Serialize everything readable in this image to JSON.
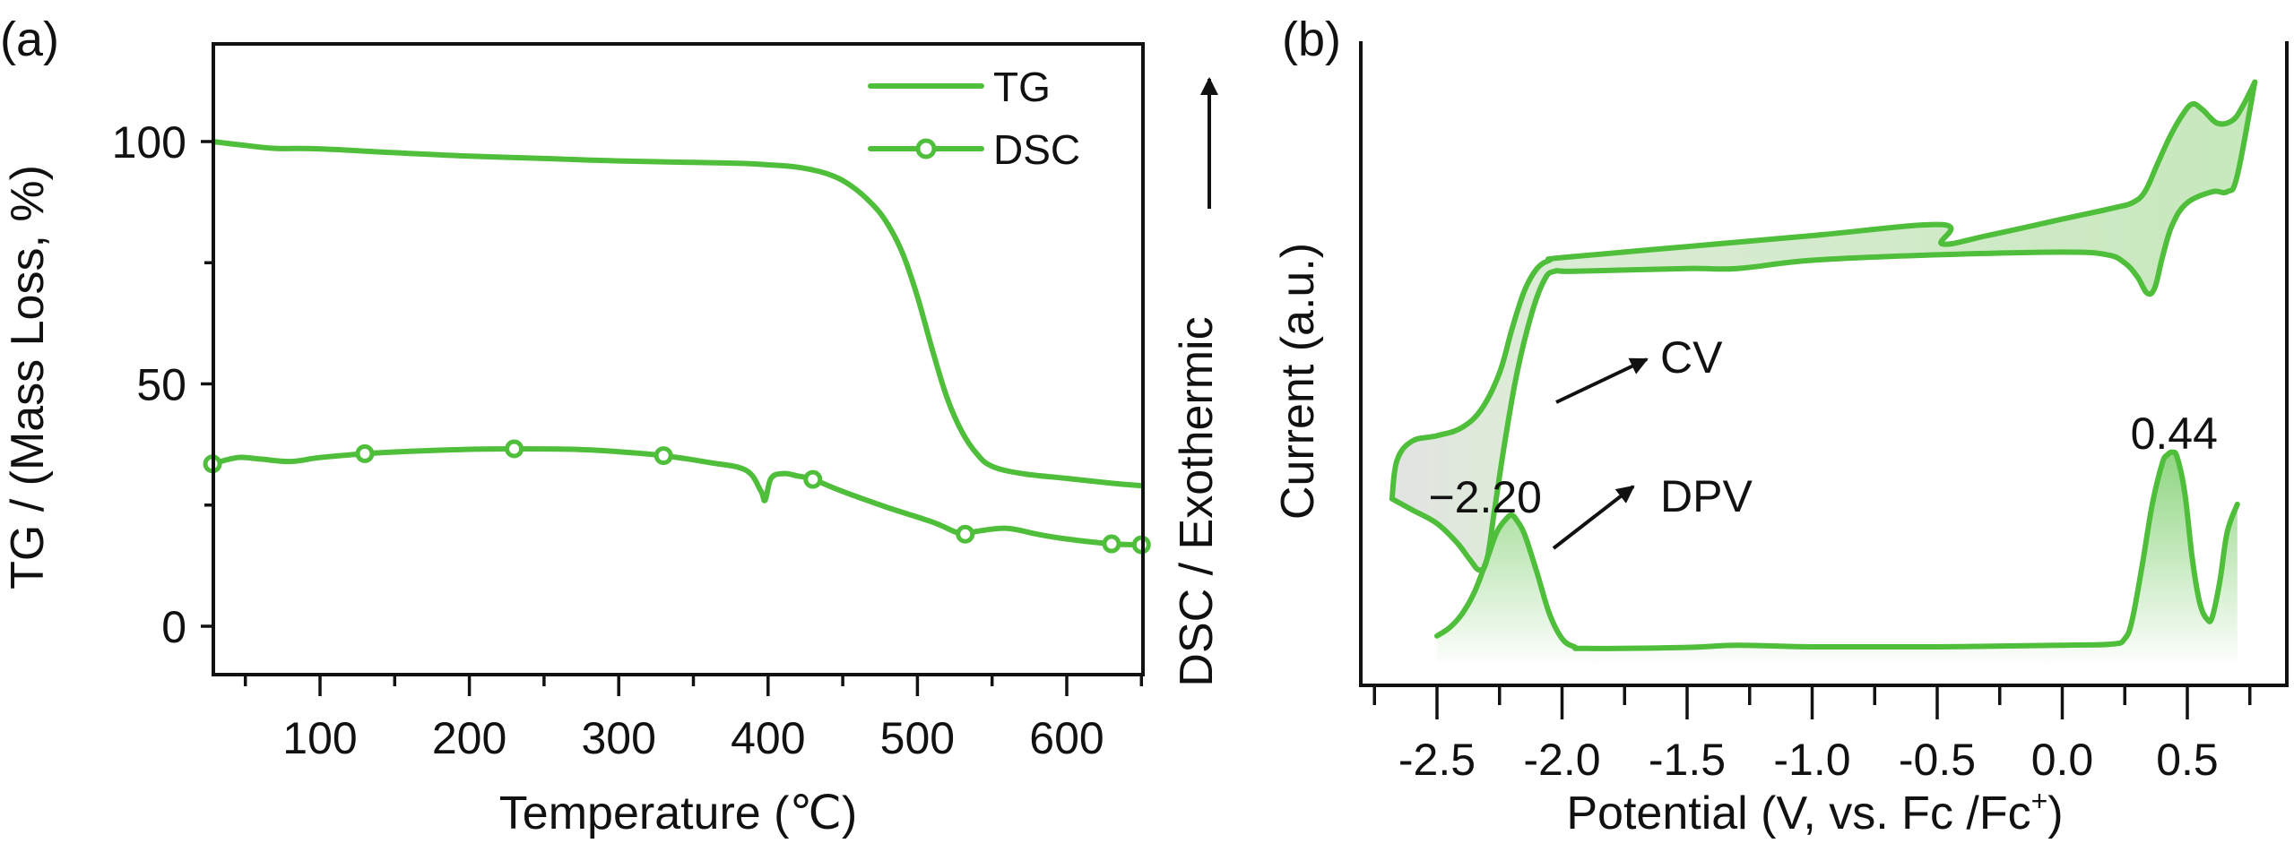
{
  "colors": {
    "series": "#4fbe3a",
    "fill_light": "#cdeac4",
    "fill_grey": "#e6e6e6",
    "axis": "#111111",
    "marker_fill": "#ffffff"
  },
  "chart_data": [
    {
      "id": "a",
      "type": "line",
      "panel_label": "(a)",
      "title": "",
      "xlabel": "Temperature (℃)",
      "ylabel": "TG / (Mass Loss, %)",
      "ylabel_right": "DSC / Exothermic",
      "right_axis_arrow": "up",
      "xlim": [
        28,
        650
      ],
      "ylim": [
        -10,
        120
      ],
      "xticks": [
        100,
        200,
        300,
        400,
        500,
        600
      ],
      "xticks_minor": [
        50,
        150,
        250,
        350,
        450,
        550,
        650
      ],
      "yticks": [
        0,
        50,
        100
      ],
      "yticks_minor": [
        25,
        75
      ],
      "grid": false,
      "legend": {
        "position": "top-right",
        "entries": [
          {
            "label": "TG",
            "marker": "none"
          },
          {
            "label": "DSC",
            "marker": "open-circle"
          }
        ]
      },
      "series": [
        {
          "name": "TG",
          "x": [
            28,
            50,
            70,
            100,
            150,
            200,
            250,
            300,
            350,
            380,
            400,
            420,
            440,
            455,
            470,
            480,
            490,
            500,
            510,
            520,
            530,
            540,
            550,
            570,
            600,
            630,
            650
          ],
          "y": [
            100,
            99.2,
            98.6,
            98.5,
            97.7,
            97,
            96.5,
            96.0,
            95.7,
            95.5,
            95.2,
            94.7,
            93.3,
            91,
            87,
            83,
            77,
            68,
            57,
            47,
            40,
            35.5,
            33,
            31.5,
            30.5,
            29.5,
            29
          ]
        },
        {
          "name": "DSC",
          "x": [
            28,
            45,
            60,
            80,
            100,
            130,
            160,
            200,
            230,
            270,
            300,
            330,
            360,
            385,
            395,
            398,
            402,
            410,
            420,
            430,
            450,
            480,
            510,
            525,
            532,
            540,
            560,
            580,
            600,
            630,
            650
          ],
          "y": [
            33.5,
            34.8,
            34.5,
            34.0,
            34.8,
            35.6,
            36.1,
            36.5,
            36.6,
            36.5,
            36.0,
            35.2,
            33.8,
            32.2,
            28.0,
            26.0,
            30.5,
            31.5,
            31.0,
            30.3,
            27.8,
            24.5,
            21.5,
            19.5,
            19.0,
            19.6,
            20.2,
            19.0,
            18.0,
            17.0,
            16.8
          ],
          "marker_x": [
            28,
            130,
            230,
            330,
            430,
            532,
            630,
            650
          ]
        }
      ]
    },
    {
      "id": "b",
      "type": "line",
      "panel_label": "(b)",
      "title": "",
      "xlabel": "Potential (V, vs. Fc /Fc",
      "xlabel_sup": "+",
      "xlabel_end": ")",
      "ylabel": "Current (a.u.)",
      "xlim": [
        -2.78,
        0.82
      ],
      "ylim": [
        0,
        100
      ],
      "xticks": [
        -2.5,
        -2.0,
        -1.5,
        -1.0,
        -0.5,
        0.0,
        0.5
      ],
      "xtick_labels": [
        "-2.5",
        "-2.0",
        "-1.5",
        "-1.0",
        "-0.5",
        "0.0",
        "0.5"
      ],
      "xticks_minor": [
        -2.75,
        -2.25,
        -1.75,
        -1.25,
        -0.75,
        -0.25,
        0.25,
        0.75
      ],
      "yticks": [],
      "grid": false,
      "annotations": [
        {
          "text": "CV",
          "points_to": "CV"
        },
        {
          "text": "DPV",
          "points_to": "DPV"
        },
        {
          "text": "−2.20",
          "x": -2.2,
          "label_for": "DPV peak"
        },
        {
          "text": "0.44",
          "x": 0.44,
          "label_for": "DPV peak"
        }
      ],
      "series": [
        {
          "name": "CV forward (upper)",
          "x": [
            -2.68,
            -2.66,
            -2.6,
            -2.5,
            -2.4,
            -2.32,
            -2.25,
            -2.2,
            -2.15,
            -2.1,
            -2.05,
            -2.0,
            -1.5,
            -1.0,
            -0.48,
            -0.48,
            -0.3,
            0.0,
            0.2,
            0.28,
            0.33,
            0.38,
            0.43,
            0.48,
            0.52,
            0.56,
            0.62,
            0.68,
            0.72,
            0.77
          ],
          "y": [
            27,
            34,
            37.5,
            38.5,
            40,
            43.5,
            50,
            58,
            65,
            69,
            70.5,
            71,
            73,
            75,
            77,
            73.5,
            75,
            78,
            80,
            81,
            83,
            88,
            93,
            97,
            99,
            98,
            95.5,
            96,
            98.5,
            103
          ]
        },
        {
          "name": "CV reverse (lower)",
          "x": [
            -2.68,
            -2.6,
            -2.5,
            -2.42,
            -2.37,
            -2.33,
            -2.3,
            -2.27,
            -2.23,
            -2.18,
            -2.12,
            -2.07,
            -2.03,
            -1.95,
            -1.5,
            -1.3,
            -1.0,
            -0.5,
            0.0,
            0.18,
            0.25,
            0.3,
            0.34,
            0.37,
            0.4,
            0.44,
            0.5,
            0.6,
            0.66,
            0.7,
            0.77
          ],
          "y": [
            27,
            25,
            22.5,
            19,
            16,
            14,
            16,
            25,
            37,
            50,
            61,
            67,
            68.5,
            68.5,
            69,
            69,
            70.5,
            71.5,
            72,
            71.5,
            70,
            67.5,
            64.5,
            65.5,
            71,
            77,
            81,
            83,
            83,
            86,
            103
          ]
        },
        {
          "name": "DPV",
          "x": [
            -2.5,
            -2.45,
            -2.4,
            -2.35,
            -2.3,
            -2.26,
            -2.22,
            -2.2,
            -2.18,
            -2.15,
            -2.1,
            -2.05,
            -2.0,
            -1.95,
            -1.9,
            -1.5,
            -1.3,
            -1.0,
            -0.5,
            0.0,
            0.2,
            0.25,
            0.28,
            0.32,
            0.36,
            0.4,
            0.42,
            0.44,
            0.46,
            0.49,
            0.52,
            0.55,
            0.58,
            0.6,
            0.63,
            0.66,
            0.7
          ],
          "y": [
            2,
            3.5,
            6,
            10,
            16,
            21,
            23.5,
            24,
            23,
            20.5,
            13.5,
            6,
            1.5,
            0,
            -0.3,
            -0.1,
            0.3,
            0,
            0,
            0.3,
            0.5,
            1.5,
            5,
            15,
            26,
            33.5,
            35,
            35.5,
            34.5,
            28,
            16,
            8,
            5,
            5.5,
            12,
            21,
            26
          ]
        }
      ]
    }
  ]
}
